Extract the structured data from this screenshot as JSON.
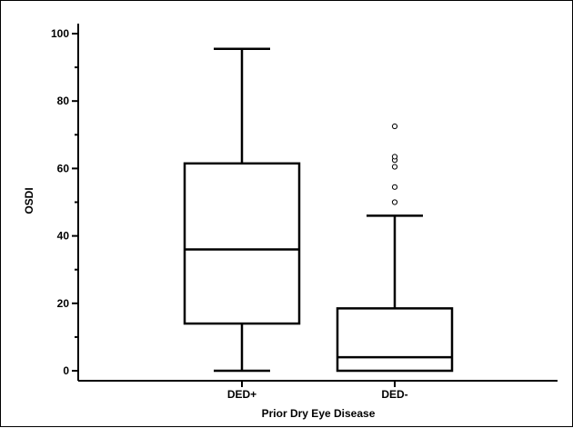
{
  "chart_data": {
    "type": "box",
    "title": "",
    "xlabel": "Prior Dry Eye Disease",
    "ylabel": "OSDI",
    "ylim": [
      0,
      100
    ],
    "y_ticks": [
      "0",
      "20",
      "40",
      "60",
      "80",
      "100"
    ],
    "y_tick_values": [
      0,
      20,
      40,
      60,
      80,
      100
    ],
    "y_minor_tick_values": [
      10,
      30,
      50,
      70,
      90
    ],
    "categories": [
      "DED+",
      "DED-"
    ],
    "boxes": [
      {
        "category": "DED+",
        "whisker_low": 0,
        "q1": 14,
        "median": 36,
        "q3": 61.5,
        "whisker_high": 95.5,
        "outliers": []
      },
      {
        "category": "DED-",
        "whisker_low": 0,
        "q1": 0,
        "median": 4,
        "q3": 18.5,
        "whisker_high": 46,
        "outliers": [
          50,
          54.5,
          60.5,
          62.5,
          63.5,
          72.5
        ]
      }
    ],
    "grid": false,
    "legend": "none",
    "colors": {
      "stroke": "#000000",
      "fill": "#ffffff"
    }
  }
}
